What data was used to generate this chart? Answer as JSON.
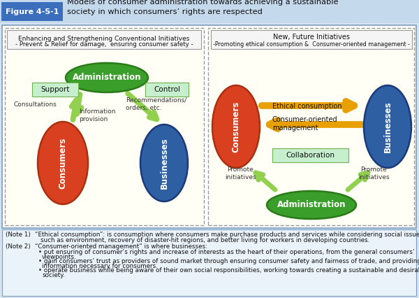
{
  "title_box_color": "#3b6fbe",
  "title_label": "Figure 4-5-1",
  "title_text": "Models of consumer administration towards achieving a sustainable\nsociety in which consumers’ rights are respected",
  "bg_color": "#d6e4f0",
  "header_bg": "#e8f0f8",
  "main_bg": "#fffff0",
  "left_panel": {
    "header1": "Enhancing and Strengthening Conventional Initiatives",
    "header2": "- Prevent & Relief for damage,  ensuring consumer safety -",
    "admin_color": "#3a9e2a",
    "admin_edge": "#2a7a1a",
    "consumers_color": "#d94020",
    "consumers_edge": "#aa3010",
    "businesses_color": "#2e5fa3",
    "businesses_edge": "#1a3a7a",
    "arrow_color": "#92d050",
    "label_bg": "#c6efce",
    "label_edge": "#70b050"
  },
  "right_panel": {
    "header1": "New, Future Initiatives",
    "header2": "-Promoting ethical consumption &  Consumer-oriented management -",
    "admin_color": "#3a9e2a",
    "admin_edge": "#2a7a1a",
    "consumers_color": "#d94020",
    "consumers_edge": "#aa3010",
    "businesses_color": "#2e5fa3",
    "businesses_edge": "#1a3a7a",
    "arrow_color_orange": "#e8a000",
    "arrow_color_green": "#92d050",
    "collab_bg": "#c6efce",
    "collab_edge": "#70b050"
  },
  "note1_title": "(Note 1)",
  "note1_text": "“Ethical consumption”: is consumption where consumers make purchase products and services while considering social issues\n           such as environment, recovery of disaster-hit regions, and better living for workers in developing countries.",
  "note2_title": "(Note 2)",
  "note2_text": "“Consumer-oriented management” is where businesses:\n            • put ensuring of consumer’s rights and increase of interests as the heart of their operations, from the general consumers’\n              viewpoints.\n            • gain consumers’ trust as providers of sound market through ensuring consumer safety and fairness of trade, and providing\n              information necessary for consumers.\n            • operate business while being aware of their own social responsibilities, working towards creating a sustainable and desirable\n              society."
}
